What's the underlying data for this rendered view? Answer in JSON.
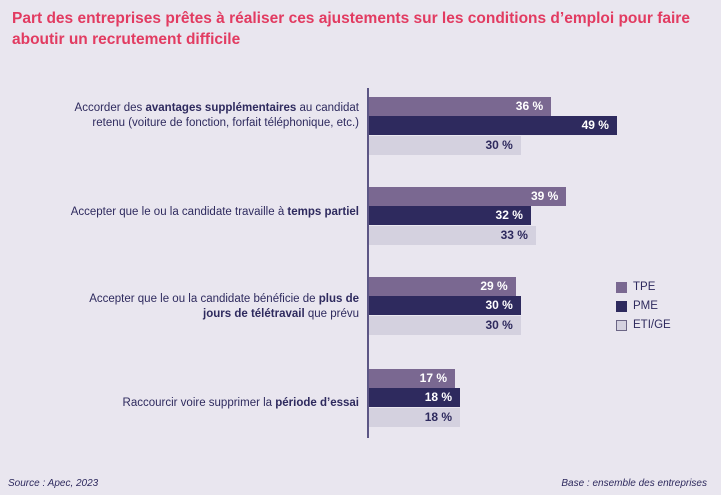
{
  "title": "Part des entreprises prêtes à réaliser ces ajustements sur les conditions d’emploi pour faire aboutir un recrutement difficile",
  "chart_data": {
    "type": "bar",
    "orientation": "horizontal",
    "categories": [
      [
        {
          "t": "Accorder des "
        },
        {
          "t": "avantages supplémentaires",
          "b": true
        },
        {
          "t": " au candidat retenu (voiture de fonction, forfait téléphonique, etc.)"
        }
      ],
      [
        {
          "t": "Accepter que le ou la candidate travaille à "
        },
        {
          "t": "temps partiel",
          "b": true
        }
      ],
      [
        {
          "t": "Accepter que le ou la candidate bénéficie de "
        },
        {
          "t": "plus de jours de télétravail",
          "b": true
        },
        {
          "t": " que prévu"
        }
      ],
      [
        {
          "t": "Raccourcir voire supprimer la "
        },
        {
          "t": "période d’essai",
          "b": true
        }
      ]
    ],
    "series": [
      {
        "name": "TPE",
        "values": [
          36,
          39,
          29,
          17
        ],
        "color": "#7a6891",
        "text": "#ffffff"
      },
      {
        "name": "PME",
        "values": [
          49,
          32,
          30,
          18
        ],
        "color": "#2e2a5e",
        "text": "#ffffff"
      },
      {
        "name": "ETI/GE",
        "values": [
          30,
          33,
          30,
          18
        ],
        "color": "#d4d1df",
        "text": "#2e2a5e"
      }
    ],
    "unit": "%",
    "legend": "right"
  },
  "footer": {
    "source": "Source : Apec, 2023",
    "base": "Base : ensemble des entreprises"
  }
}
